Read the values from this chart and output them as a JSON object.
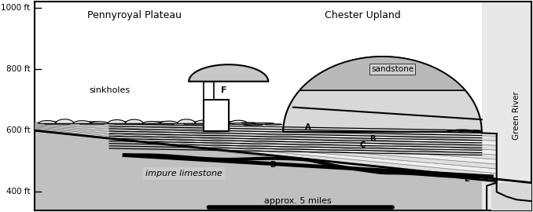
{
  "figsize": [
    6.78,
    2.7
  ],
  "dpi": 100,
  "bg_color": "#ffffff",
  "ylim": [
    340,
    1020
  ],
  "xlim": [
    0,
    100
  ],
  "ytick_labels": [
    "400 ft",
    "600 ft",
    "800 ft",
    "1000 ft"
  ],
  "ytick_vals": [
    400,
    600,
    800,
    1000
  ],
  "title_pennyroyal": "Pennyroyal Plateau",
  "title_chester": "Chester Upland",
  "label_sinkholes": "sinkholes",
  "label_impure": "impure limestone",
  "label_sandstone": "sandstone",
  "label_greenriver": "Green River",
  "label_scale": "approx. 5 miles",
  "label_A": "A",
  "label_B": "B",
  "label_C": "C",
  "label_D": "D",
  "label_E": "E",
  "label_F": "F",
  "color_light_gray": "#d4d4d4",
  "color_medium_gray": "#b8b8b8",
  "color_dark_gray": "#909090",
  "color_impure_limestone": "#c0c0c0",
  "color_white": "#ffffff",
  "color_black": "#000000",
  "color_very_light": "#ebebeb"
}
